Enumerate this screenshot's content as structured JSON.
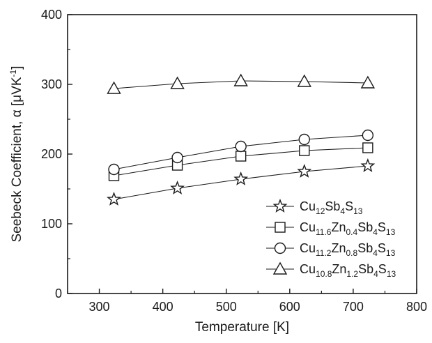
{
  "chart_data": {
    "type": "line",
    "xlabel": "Temperature [K]",
    "ylabel": {
      "parts": [
        {
          "t": "Seebeck Coefficient, ",
          "s": "n"
        },
        {
          "t": "α",
          "s": "n"
        },
        {
          "t": " [",
          "s": "n"
        },
        {
          "t": "μVK",
          "s": "n"
        },
        {
          "t": "-1",
          "s": "sup"
        },
        {
          "t": "]",
          "s": "n"
        }
      ]
    },
    "xlim": [
      250,
      800
    ],
    "ylim": [
      0,
      400
    ],
    "xticks": [
      300,
      400,
      500,
      600,
      700,
      800
    ],
    "yticks": [
      0,
      100,
      200,
      300,
      400
    ],
    "x": [
      323,
      423,
      523,
      623,
      723
    ],
    "legend_position": "bottom-right",
    "grid": false,
    "series": [
      {
        "marker": "star",
        "values": [
          135,
          151,
          164,
          175,
          183
        ],
        "name_parts": [
          {
            "t": "Cu",
            "s": "n"
          },
          {
            "t": "12",
            "s": "sub"
          },
          {
            "t": "Sb",
            "s": "n"
          },
          {
            "t": "4",
            "s": "sub"
          },
          {
            "t": "S",
            "s": "n"
          },
          {
            "t": "13",
            "s": "sub"
          }
        ]
      },
      {
        "marker": "square",
        "values": [
          169,
          184,
          197,
          205,
          209
        ],
        "name_parts": [
          {
            "t": "Cu",
            "s": "n"
          },
          {
            "t": "11.6",
            "s": "sub"
          },
          {
            "t": "Zn",
            "s": "n"
          },
          {
            "t": "0.4",
            "s": "sub"
          },
          {
            "t": "Sb",
            "s": "n"
          },
          {
            "t": "4",
            "s": "sub"
          },
          {
            "t": "S",
            "s": "n"
          },
          {
            "t": "13",
            "s": "sub"
          }
        ]
      },
      {
        "marker": "circle",
        "values": [
          178,
          195,
          211,
          221,
          227
        ],
        "name_parts": [
          {
            "t": "Cu",
            "s": "n"
          },
          {
            "t": "11.2",
            "s": "sub"
          },
          {
            "t": "Zn",
            "s": "n"
          },
          {
            "t": "0.8",
            "s": "sub"
          },
          {
            "t": "Sb",
            "s": "n"
          },
          {
            "t": "4",
            "s": "sub"
          },
          {
            "t": "S",
            "s": "n"
          },
          {
            "t": "13",
            "s": "sub"
          }
        ]
      },
      {
        "marker": "triangle",
        "values": [
          294,
          301,
          305,
          304,
          302
        ],
        "name_parts": [
          {
            "t": "Cu",
            "s": "n"
          },
          {
            "t": "10.8",
            "s": "sub"
          },
          {
            "t": "Zn",
            "s": "n"
          },
          {
            "t": "1.2",
            "s": "sub"
          },
          {
            "t": "Sb",
            "s": "n"
          },
          {
            "t": "4",
            "s": "sub"
          },
          {
            "t": "S",
            "s": "n"
          },
          {
            "t": "13",
            "s": "sub"
          }
        ]
      }
    ]
  }
}
